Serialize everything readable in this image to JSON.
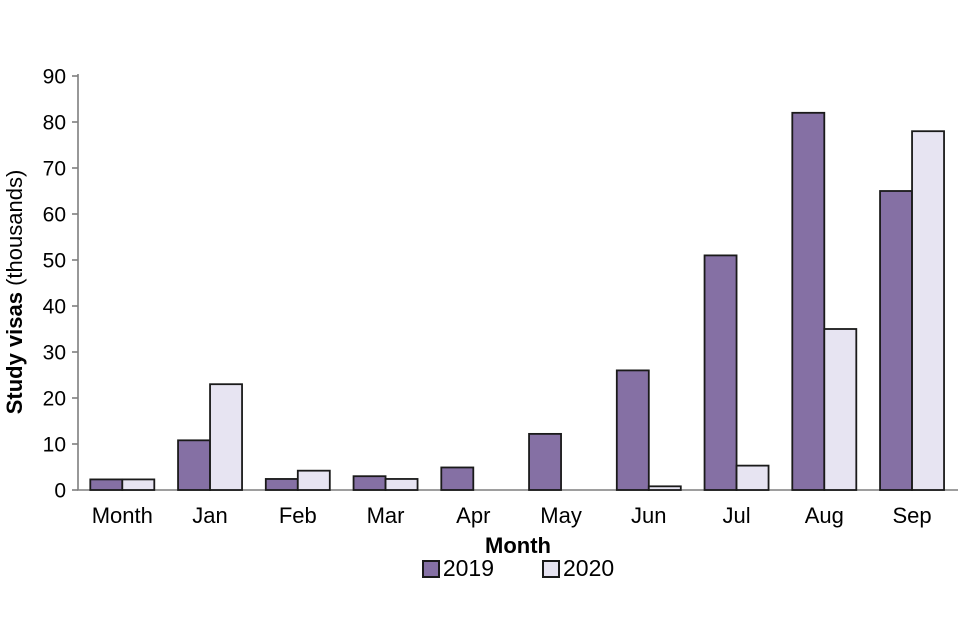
{
  "chart_data": {
    "type": "bar",
    "title": "",
    "categories": [
      "Month",
      "Jan",
      "Feb",
      "Mar",
      "Apr",
      "May",
      "Jun",
      "Jul",
      "Aug",
      "Sep"
    ],
    "series": [
      {
        "name": "2019",
        "color": "#8570A4",
        "values": [
          2.3,
          10.8,
          2.4,
          3,
          4.9,
          12.2,
          26,
          51,
          82,
          65
        ]
      },
      {
        "name": "2020",
        "color": "#E7E4F2",
        "values": [
          2.3,
          23,
          4.2,
          2.4,
          0,
          0,
          0.8,
          5.3,
          35,
          78
        ]
      }
    ],
    "xlabel": "Month",
    "ylabel_bold": "Study visas",
    "ylabel_normal": " (thousands)",
    "ylim": [
      0,
      90
    ],
    "yticks": [
      0,
      10,
      20,
      30,
      40,
      50,
      60,
      70,
      80,
      90
    ],
    "grid": false,
    "legend_position": "bottom",
    "bar_border_color": "#1A1A1A",
    "axis_color": "#7F7F7F",
    "text_color": "#000000"
  }
}
